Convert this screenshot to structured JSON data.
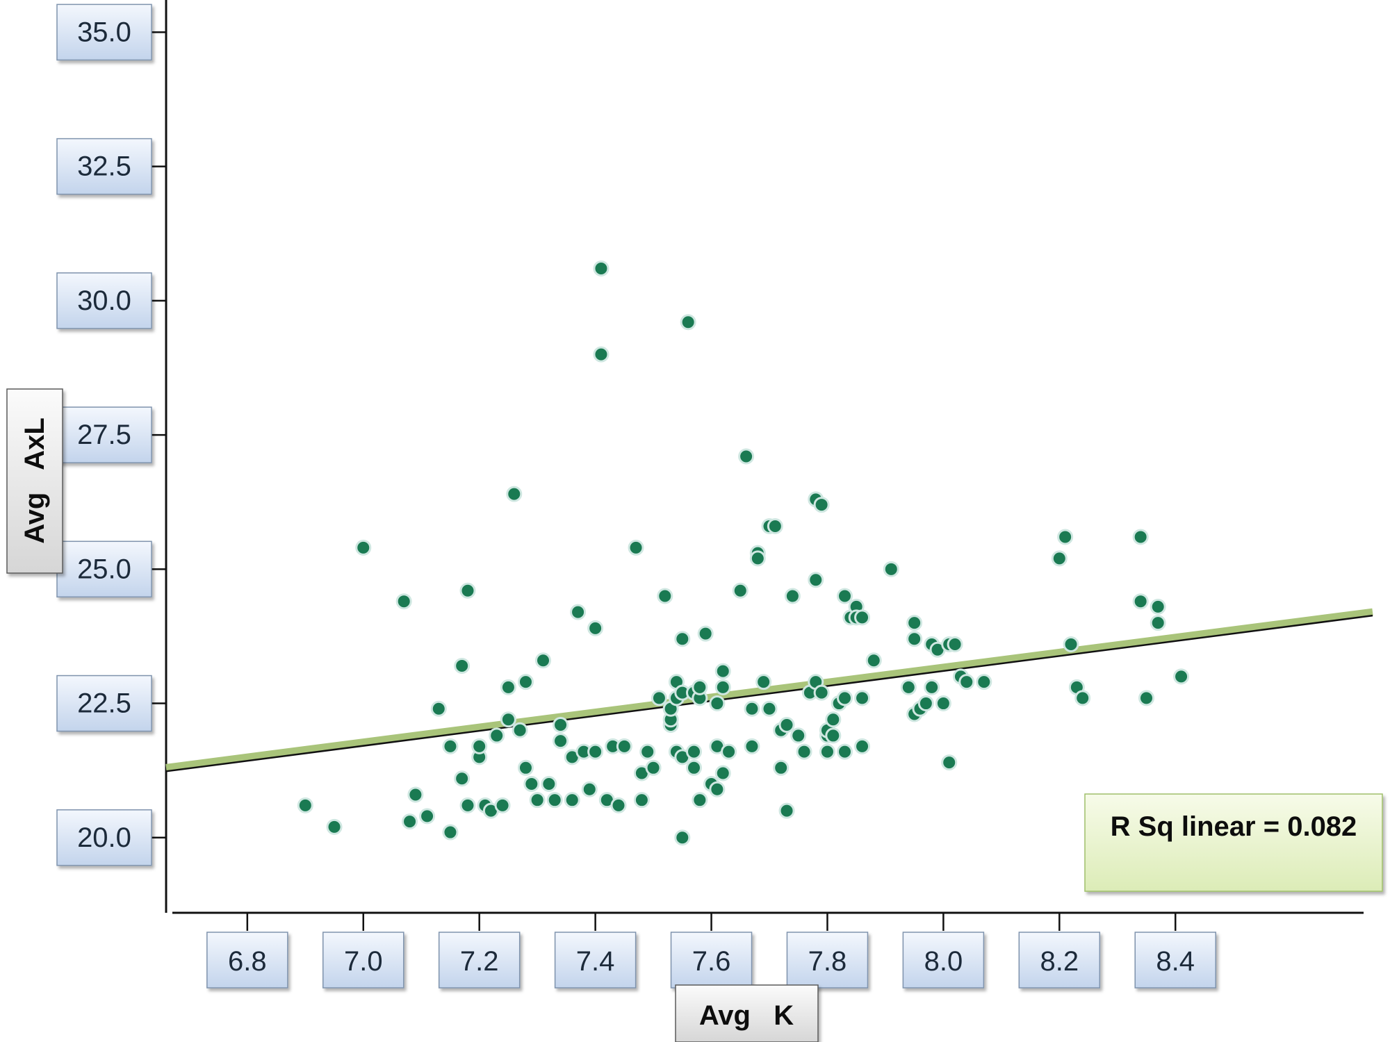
{
  "chart_data": {
    "type": "scatter",
    "xlabel": "Avg   K",
    "ylabel": "Avg   AxL",
    "xlim": [
      6.66,
      8.74
    ],
    "ylim": [
      18.6,
      35.6
    ],
    "xticks": [
      "6.8",
      "7.0",
      "7.2",
      "7.4",
      "7.6",
      "7.8",
      "8.0",
      "8.2",
      "8.4"
    ],
    "yticks": [
      "20.0",
      "22.5",
      "25.0",
      "27.5",
      "30.0",
      "32.5",
      "35.0"
    ],
    "grid": false,
    "point_color": "#1a7a52",
    "fit_line": {
      "type": "linear",
      "x": [
        6.66,
        8.74
      ],
      "y": [
        21.3,
        24.2
      ],
      "color": "#a9c47a"
    },
    "annotation": "R Sq linear = 0.082",
    "points": [
      [
        6.9,
        20.6
      ],
      [
        6.95,
        20.2
      ],
      [
        7.0,
        25.4
      ],
      [
        7.07,
        24.4
      ],
      [
        7.08,
        20.3
      ],
      [
        7.09,
        20.8
      ],
      [
        7.11,
        20.4
      ],
      [
        7.13,
        22.4
      ],
      [
        7.15,
        20.1
      ],
      [
        7.15,
        21.7
      ],
      [
        7.17,
        21.1
      ],
      [
        7.17,
        23.2
      ],
      [
        7.18,
        20.6
      ],
      [
        7.18,
        24.6
      ],
      [
        7.2,
        21.5
      ],
      [
        7.2,
        21.7
      ],
      [
        7.21,
        20.6
      ],
      [
        7.22,
        20.5
      ],
      [
        7.23,
        21.9
      ],
      [
        7.24,
        20.6
      ],
      [
        7.25,
        22.2
      ],
      [
        7.25,
        22.8
      ],
      [
        7.26,
        26.4
      ],
      [
        7.27,
        22.0
      ],
      [
        7.28,
        21.3
      ],
      [
        7.28,
        22.9
      ],
      [
        7.29,
        21.0
      ],
      [
        7.3,
        20.7
      ],
      [
        7.31,
        23.3
      ],
      [
        7.32,
        21.0
      ],
      [
        7.33,
        20.7
      ],
      [
        7.34,
        21.8
      ],
      [
        7.34,
        22.1
      ],
      [
        7.36,
        20.7
      ],
      [
        7.36,
        21.5
      ],
      [
        7.37,
        24.2
      ],
      [
        7.38,
        21.6
      ],
      [
        7.39,
        20.9
      ],
      [
        7.4,
        21.6
      ],
      [
        7.4,
        23.9
      ],
      [
        7.41,
        30.6
      ],
      [
        7.41,
        29.0
      ],
      [
        7.42,
        20.7
      ],
      [
        7.43,
        21.7
      ],
      [
        7.44,
        20.6
      ],
      [
        7.45,
        21.7
      ],
      [
        7.47,
        25.4
      ],
      [
        7.48,
        20.7
      ],
      [
        7.48,
        21.2
      ],
      [
        7.49,
        21.6
      ],
      [
        7.5,
        21.3
      ],
      [
        7.51,
        22.6
      ],
      [
        7.52,
        24.5
      ],
      [
        7.53,
        22.1
      ],
      [
        7.53,
        22.2
      ],
      [
        7.53,
        22.4
      ],
      [
        7.54,
        21.6
      ],
      [
        7.54,
        22.6
      ],
      [
        7.54,
        22.9
      ],
      [
        7.55,
        20.0
      ],
      [
        7.55,
        21.5
      ],
      [
        7.55,
        22.7
      ],
      [
        7.55,
        23.7
      ],
      [
        7.56,
        29.6
      ],
      [
        7.57,
        21.3
      ],
      [
        7.57,
        21.6
      ],
      [
        7.57,
        22.7
      ],
      [
        7.58,
        20.7
      ],
      [
        7.58,
        22.6
      ],
      [
        7.58,
        22.8
      ],
      [
        7.59,
        23.8
      ],
      [
        7.6,
        21.0
      ],
      [
        7.61,
        20.9
      ],
      [
        7.61,
        21.7
      ],
      [
        7.61,
        22.5
      ],
      [
        7.62,
        21.2
      ],
      [
        7.62,
        22.8
      ],
      [
        7.62,
        23.1
      ],
      [
        7.63,
        21.6
      ],
      [
        7.65,
        24.6
      ],
      [
        7.66,
        27.1
      ],
      [
        7.67,
        21.7
      ],
      [
        7.67,
        22.4
      ],
      [
        7.68,
        25.3
      ],
      [
        7.68,
        25.2
      ],
      [
        7.69,
        22.9
      ],
      [
        7.7,
        22.4
      ],
      [
        7.7,
        25.8
      ],
      [
        7.71,
        25.8
      ],
      [
        7.72,
        21.3
      ],
      [
        7.72,
        22.0
      ],
      [
        7.73,
        20.5
      ],
      [
        7.73,
        22.1
      ],
      [
        7.74,
        24.5
      ],
      [
        7.75,
        21.9
      ],
      [
        7.76,
        21.6
      ],
      [
        7.77,
        22.7
      ],
      [
        7.78,
        24.8
      ],
      [
        7.78,
        22.9
      ],
      [
        7.78,
        26.3
      ],
      [
        7.79,
        22.7
      ],
      [
        7.79,
        26.2
      ],
      [
        7.8,
        21.6
      ],
      [
        7.8,
        21.9
      ],
      [
        7.8,
        22.0
      ],
      [
        7.81,
        22.2
      ],
      [
        7.81,
        21.9
      ],
      [
        7.82,
        22.5
      ],
      [
        7.83,
        24.5
      ],
      [
        7.83,
        22.6
      ],
      [
        7.83,
        21.6
      ],
      [
        7.84,
        24.1
      ],
      [
        7.85,
        24.3
      ],
      [
        7.85,
        24.1
      ],
      [
        7.86,
        21.7
      ],
      [
        7.86,
        22.6
      ],
      [
        7.86,
        24.1
      ],
      [
        7.88,
        23.3
      ],
      [
        7.91,
        25.0
      ],
      [
        7.94,
        22.8
      ],
      [
        7.95,
        22.3
      ],
      [
        7.95,
        24.0
      ],
      [
        7.95,
        23.7
      ],
      [
        7.96,
        22.4
      ],
      [
        7.97,
        22.5
      ],
      [
        7.98,
        23.6
      ],
      [
        7.98,
        22.8
      ],
      [
        7.99,
        23.5
      ],
      [
        8.0,
        22.5
      ],
      [
        8.01,
        21.4
      ],
      [
        8.01,
        23.6
      ],
      [
        8.02,
        23.6
      ],
      [
        8.03,
        23.0
      ],
      [
        8.04,
        22.9
      ],
      [
        8.07,
        22.9
      ],
      [
        8.2,
        25.2
      ],
      [
        8.21,
        25.6
      ],
      [
        8.22,
        23.6
      ],
      [
        8.23,
        22.8
      ],
      [
        8.24,
        22.6
      ],
      [
        8.34,
        25.6
      ],
      [
        8.34,
        24.4
      ],
      [
        8.35,
        22.6
      ],
      [
        8.37,
        24.3
      ],
      [
        8.37,
        24.0
      ],
      [
        8.41,
        23.0
      ]
    ]
  }
}
